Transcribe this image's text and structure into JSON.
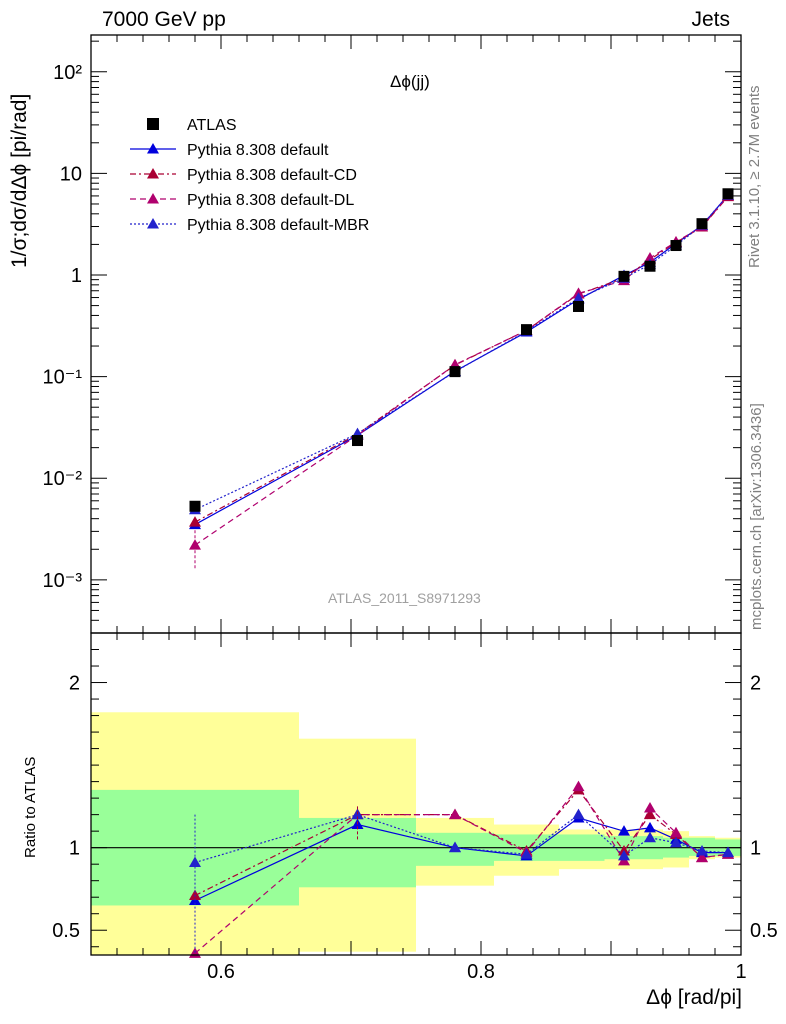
{
  "header": {
    "left": "7000 GeV pp",
    "right": "Jets"
  },
  "side_labels": {
    "rivet": "Rivet 3.1.10, ≥ 2.7M events",
    "mcplots": "mcplots.cern.ch [arXiv:1306.3436]"
  },
  "chart_data": [
    {
      "panel": "main",
      "type": "scatter",
      "title": "Δϕ(jj)",
      "ylabel": "1/σ;dσ/dΔϕ [pi/rad]",
      "xlim": [
        0.5,
        1.0
      ],
      "ylim": [
        0.0003,
        230
      ],
      "yscale": "log",
      "ytick_labels": [
        "10⁻³",
        "10⁻²",
        "10⁻¹",
        "1",
        "10",
        "10²"
      ],
      "watermark": "ATLAS_2011_S8971293",
      "legend_position": "top-left",
      "data": {
        "name": "ATLAS",
        "color": "#000000",
        "x": [
          0.58,
          0.705,
          0.78,
          0.835,
          0.875,
          0.91,
          0.93,
          0.95,
          0.97,
          0.99
        ],
        "y": [
          0.0053,
          0.0235,
          0.112,
          0.29,
          0.49,
          0.97,
          1.22,
          1.95,
          3.2,
          6.3
        ],
        "bins": [
          [
            0.5,
            0.66
          ],
          [
            0.66,
            0.75
          ],
          [
            0.75,
            0.81
          ],
          [
            0.81,
            0.86
          ],
          [
            0.86,
            0.895
          ],
          [
            0.895,
            0.92
          ],
          [
            0.92,
            0.94
          ],
          [
            0.94,
            0.96
          ],
          [
            0.96,
            0.98
          ],
          [
            0.98,
            1.0
          ]
        ],
        "band_inner": [
          [
            0.65,
            1.35
          ],
          [
            0.76,
            1.18
          ],
          [
            0.89,
            1.09
          ],
          [
            0.92,
            1.08
          ],
          [
            0.92,
            1.08
          ],
          [
            0.93,
            1.07
          ],
          [
            0.93,
            1.07
          ],
          [
            0.94,
            1.06
          ],
          [
            0.95,
            1.06
          ],
          [
            0.95,
            1.05
          ]
        ],
        "band_outer": [
          [
            0.35,
            1.82
          ],
          [
            0.37,
            1.66
          ],
          [
            0.77,
            1.18
          ],
          [
            0.83,
            1.14
          ],
          [
            0.87,
            1.11
          ],
          [
            0.87,
            1.11
          ],
          [
            0.87,
            1.11
          ],
          [
            0.88,
            1.1
          ],
          [
            0.93,
            1.07
          ],
          [
            0.94,
            1.06
          ]
        ]
      },
      "series": [
        {
          "name": "Pythia 8.308 default",
          "color": "#0000dd",
          "dash": "",
          "y": [
            0.0035,
            0.0265,
            0.113,
            0.275,
            0.575,
            0.99,
            1.33,
            2.04,
            3.07,
            6.1
          ]
        },
        {
          "name": "Pythia 8.308 default-CD",
          "color": "#aa0033",
          "dash": "6,3,2,3",
          "y": [
            0.0037,
            0.0272,
            0.13,
            0.285,
            0.65,
            0.93,
            1.42,
            2.09,
            2.97,
            5.9
          ]
        },
        {
          "name": "Pythia 8.308 default-DL",
          "color": "#b0006e",
          "dash": "6,4",
          "y": [
            0.0022,
            0.0265,
            0.131,
            0.285,
            0.66,
            0.88,
            1.47,
            2.12,
            2.99,
            6.0
          ]
        },
        {
          "name": "Pythia 8.308 default-MBR",
          "color": "#2222cc",
          "dash": "2,2",
          "y": [
            0.0049,
            0.0275,
            0.112,
            0.28,
            0.59,
            0.93,
            1.27,
            1.95,
            3.1,
            6.1
          ]
        }
      ]
    },
    {
      "panel": "ratio",
      "type": "line",
      "ylabel": "Ratio to ATLAS",
      "xlabel": "Δϕ [rad/pi]",
      "xlim": [
        0.5,
        1.0
      ],
      "ylim": [
        0.35,
        2.3
      ],
      "yticks": [
        0.5,
        1,
        2
      ],
      "ytick_labels": [
        "0.5",
        "1",
        "2"
      ],
      "xticks": [
        0.6,
        0.8,
        1.0
      ],
      "xtick_labels": [
        "0.6",
        "0.8",
        "1"
      ],
      "series": [
        {
          "name": "Pythia 8.308 default",
          "y": [
            0.68,
            1.14,
            1.0,
            0.95,
            1.18,
            1.1,
            1.12,
            1.05,
            0.97,
            0.97
          ]
        },
        {
          "name": "Pythia 8.308 default-CD",
          "y": [
            0.71,
            1.2,
            1.2,
            0.98,
            1.35,
            0.98,
            1.2,
            1.08,
            0.94,
            0.96
          ]
        },
        {
          "name": "Pythia 8.308 default-DL",
          "y": [
            0.36,
            1.2,
            1.2,
            0.97,
            1.37,
            0.92,
            1.24,
            1.09,
            0.94,
            0.96
          ]
        },
        {
          "name": "Pythia 8.308 default-MBR",
          "y": [
            0.91,
            1.2,
            1.0,
            0.96,
            1.2,
            0.95,
            1.06,
            1.03,
            0.98,
            0.97
          ]
        }
      ]
    }
  ]
}
